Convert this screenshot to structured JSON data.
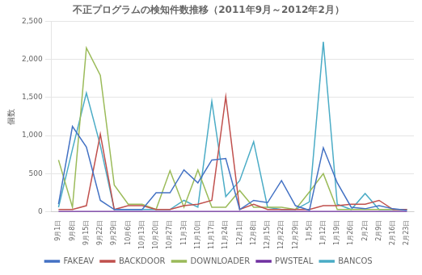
{
  "chart_data": {
    "type": "line",
    "title": "不正プログラムの検知件数推移（2011年9月～2012年2月）",
    "ylabel": "個数",
    "categories": [
      "9月1日",
      "9月8日",
      "9月15日",
      "9月22日",
      "9月29日",
      "10月6日",
      "10月13日",
      "10月20日",
      "10月27日",
      "11月3日",
      "11月10日",
      "11月17日",
      "11月24日",
      "12月1日",
      "12月8日",
      "12月15日",
      "12月22日",
      "12月29日",
      "1月5日",
      "1月12日",
      "1月19日",
      "1月26日",
      "2月2日",
      "2月9日",
      "2月16日",
      "2月23日"
    ],
    "series": [
      {
        "name": "FAKEAV",
        "color": "#4472c4",
        "values": [
          100,
          1120,
          850,
          150,
          30,
          30,
          30,
          250,
          250,
          550,
          380,
          680,
          700,
          30,
          150,
          120,
          410,
          80,
          20,
          840,
          380,
          60,
          40,
          80,
          40,
          20
        ]
      },
      {
        "name": "BACKDOOR",
        "color": "#c0504d",
        "values": [
          30,
          30,
          80,
          1020,
          30,
          80,
          80,
          30,
          30,
          80,
          100,
          150,
          1510,
          30,
          100,
          30,
          30,
          30,
          30,
          80,
          80,
          100,
          100,
          150,
          30,
          30
        ]
      },
      {
        "name": "DOWNLOADER",
        "color": "#9bbb59",
        "values": [
          680,
          60,
          2150,
          1790,
          350,
          100,
          100,
          30,
          540,
          60,
          550,
          60,
          60,
          280,
          60,
          60,
          60,
          30,
          260,
          500,
          30,
          30,
          30,
          30,
          30,
          30
        ]
      },
      {
        "name": "PWSTEAL",
        "color": "#7030a0",
        "values": [
          5,
          5,
          5,
          5,
          5,
          5,
          5,
          5,
          5,
          5,
          5,
          5,
          5,
          5,
          5,
          5,
          5,
          5,
          5,
          5,
          5,
          5,
          5,
          5,
          5,
          5
        ]
      },
      {
        "name": "BANCOS",
        "color": "#4bacc6",
        "values": [
          60,
          820,
          1560,
          870,
          30,
          30,
          30,
          30,
          30,
          150,
          60,
          1450,
          200,
          410,
          920,
          60,
          30,
          30,
          130,
          2230,
          100,
          30,
          240,
          30,
          30,
          30
        ]
      }
    ],
    "ylim": [
      0,
      2500
    ],
    "yticks": [
      0,
      500,
      {
        "value": 1000,
        "label": "1,000"
      },
      {
        "value": 1500,
        "label": "1,500"
      },
      {
        "value": 2000,
        "label": "2,000"
      },
      {
        "value": 2500,
        "label": "2,500"
      }
    ],
    "grid": true,
    "legend": "bottom"
  }
}
